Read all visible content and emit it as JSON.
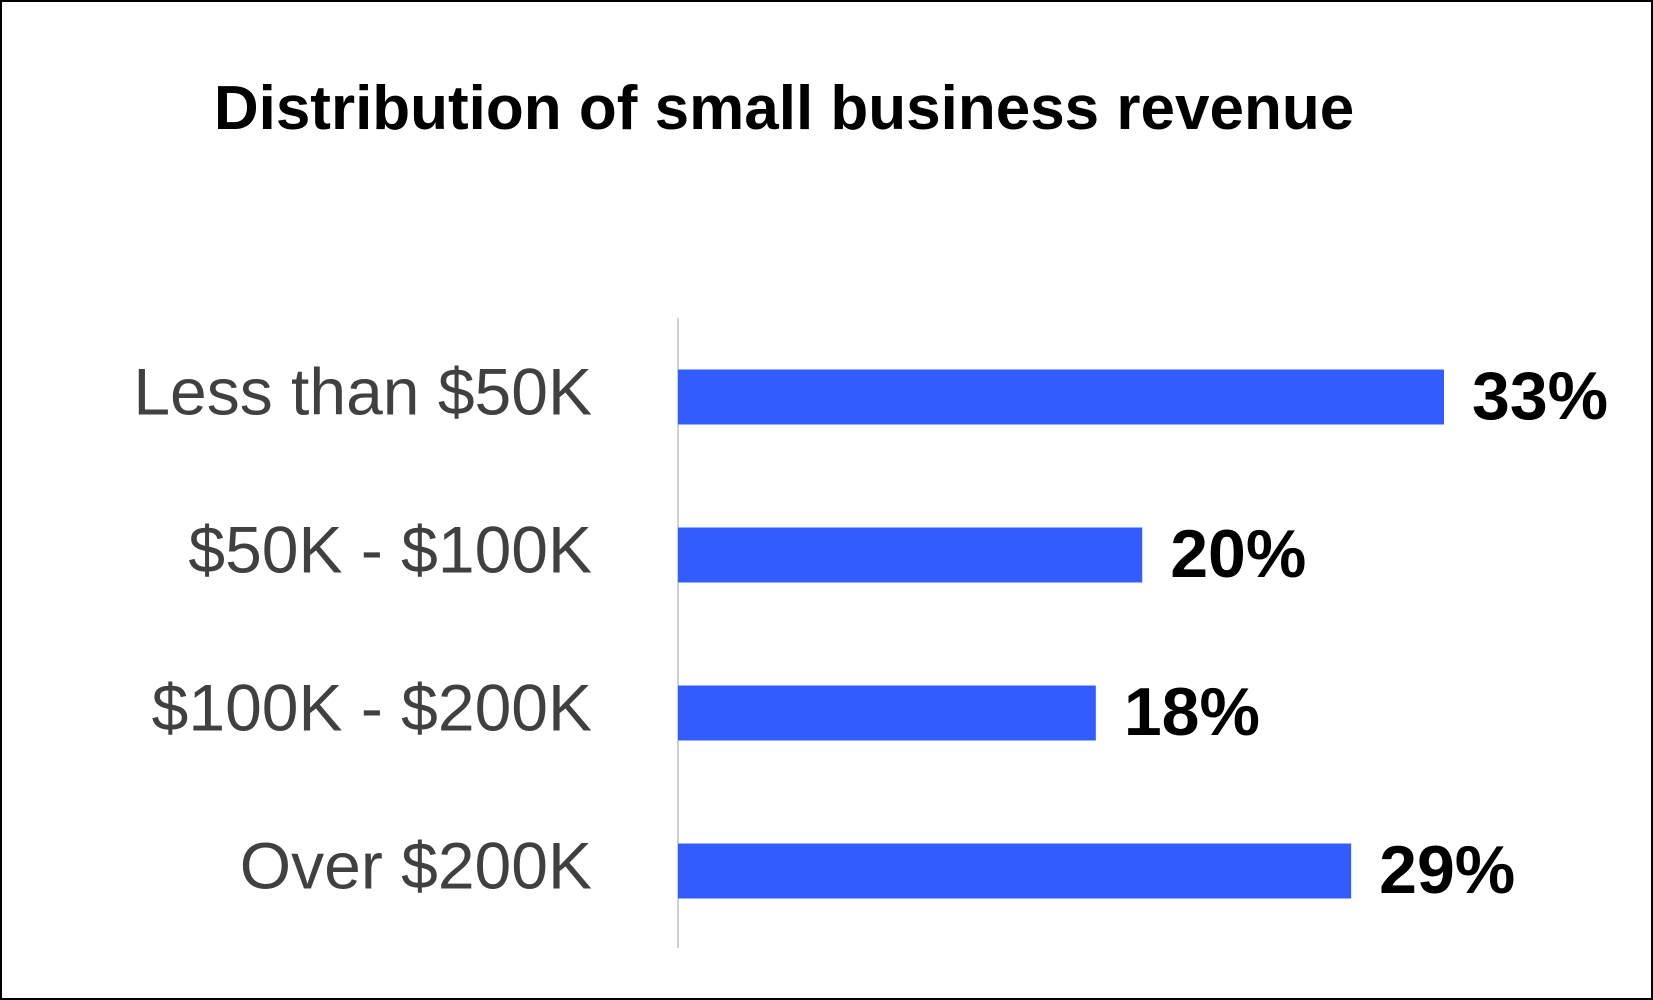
{
  "chart_data": {
    "type": "bar",
    "orientation": "horizontal",
    "title": "Distribution of small business revenue",
    "categories": [
      "Less than $50K",
      "$50K - $100K",
      "$100K - $200K",
      "Over $200K"
    ],
    "values": [
      33,
      20,
      18,
      29
    ],
    "value_labels": [
      "33%",
      "20%",
      "18%",
      "29%"
    ],
    "color": "#335cff"
  }
}
